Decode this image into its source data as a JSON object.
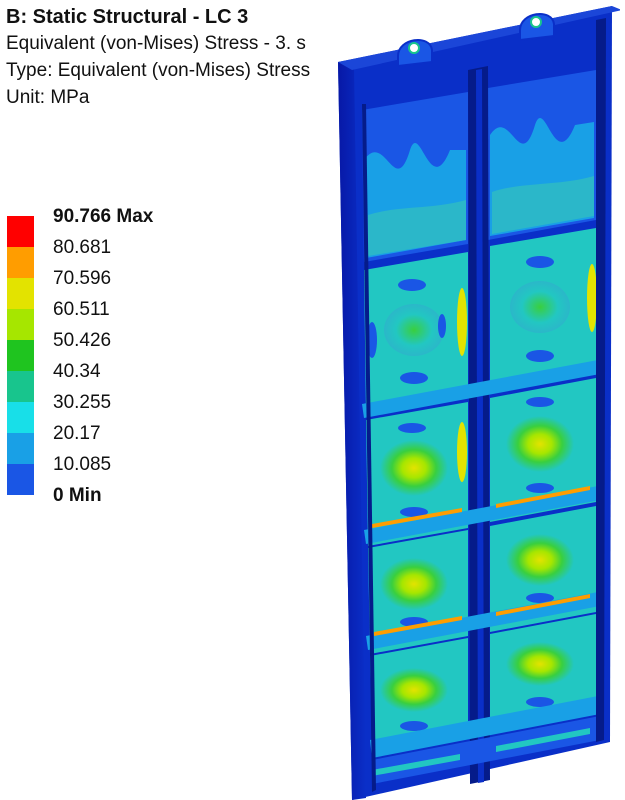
{
  "header": {
    "title": "B: Static Structural - LC 3",
    "result": "Equivalent (von-Mises) Stress - 3. s",
    "type": "Type: Equivalent (von-Mises) Stress",
    "unit": "Unit: MPa"
  },
  "legend": {
    "labels": [
      "90.766 Max",
      "80.681",
      "70.596",
      "60.511",
      "50.426",
      "40.34",
      "30.255",
      "20.17",
      "10.085",
      "0 Min"
    ],
    "colors": [
      "#ff0000",
      "#ff9d00",
      "#e3e300",
      "#a6e600",
      "#1fc41f",
      "#18c58d",
      "#18dfe8",
      "#19a0e6",
      "#1a56e5",
      "#0000ff"
    ]
  },
  "model": {
    "colors": {
      "frame": "#0a2fc8",
      "frame_dark": "#051b8a",
      "panel_low": "#1e7fd6",
      "panel_mid": "#22c7c2",
      "panel_high": "#39cf3f",
      "hot": "#e3e300",
      "peak": "#ff9d00"
    }
  }
}
